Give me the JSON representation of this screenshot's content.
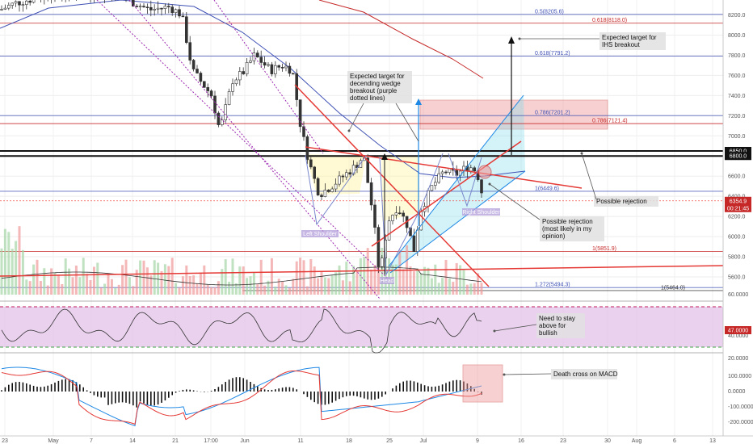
{
  "chart_data": {
    "type": "candlestick",
    "price_axis": {
      "ticks": [
        8200,
        8000,
        7800,
        7600,
        7400,
        7200,
        7000,
        6800,
        6600,
        6400,
        6200,
        6000,
        5800,
        5600
      ],
      "ylim": [
        5450,
        8350
      ]
    },
    "time_axis": {
      "labels": [
        "23",
        "May",
        "7",
        "14",
        "21",
        "17:00",
        "Jun",
        "11",
        "18",
        "25",
        "Jul",
        "9",
        "16",
        "23",
        "30",
        "Aug",
        "6",
        "13"
      ]
    },
    "fib_levels": [
      {
        "label": "0.5(8205.6)",
        "value": 8205.6,
        "color": "#3f51b5"
      },
      {
        "label": "0.618(8118.0)",
        "value": 8118.0,
        "color": "#c62828"
      },
      {
        "label": "0.618(7791.2)",
        "value": 7791.2,
        "color": "#3f51b5"
      },
      {
        "label": "0.786(7201.2)",
        "value": 7201.2,
        "color": "#3f51b5"
      },
      {
        "label": "0.786(7121.4)",
        "value": 7121.4,
        "color": "#c62828"
      },
      {
        "label": "1(6449.6)",
        "value": 6449.6,
        "color": "#3f51b5"
      },
      {
        "label": "1(5851.9)",
        "value": 5851.9,
        "color": "#c62828"
      },
      {
        "label": "1.272(5494.3)",
        "value": 5494.3,
        "color": "#3f51b5"
      },
      {
        "label": "1(5464.0)",
        "value": 5464.0,
        "color": "#333333"
      }
    ],
    "price_badges": [
      {
        "text": "6850.0",
        "value": 6850.0,
        "bg": "#111111"
      },
      {
        "text": "6800.0",
        "value": 6800.0,
        "bg": "#111111"
      },
      {
        "text": "6354.9",
        "value": 6354.9,
        "bg": "#c62828"
      },
      {
        "text": "00:21:45",
        "value": 6300.0,
        "bg": "#c62828"
      }
    ],
    "pattern_labels": [
      {
        "text": "Left Shoulder",
        "price": 6185
      },
      {
        "text": "Head",
        "price": 5570
      },
      {
        "text": "Right Shoulder",
        "price": 6270
      }
    ],
    "annotations": [
      {
        "id": "ihs",
        "text": [
          "Expected target for",
          "IHS breakout"
        ]
      },
      {
        "id": "wedge",
        "text": [
          "Expected target for",
          "decending wedge",
          "breakout (purple",
          "dotted lines)"
        ]
      },
      {
        "id": "rej1",
        "text": [
          "Possible rejection"
        ]
      },
      {
        "id": "rej2",
        "text": [
          "Possible rejection",
          "(most likely in my",
          "opinion)"
        ]
      },
      {
        "id": "rsi",
        "text": [
          "Need to stay",
          "above for",
          "bullish"
        ]
      },
      {
        "id": "macd",
        "text": [
          "Death cross on MACD"
        ]
      }
    ],
    "rsi": {
      "ticks": [
        "60.0000",
        "40.0000",
        "20.0000"
      ],
      "current_badge": "47.0000",
      "upper_band": 70,
      "lower_band": 30
    },
    "macd": {
      "ticks": [
        "100.0000",
        "0.0000",
        "-100.0000",
        "-200.0000"
      ]
    },
    "colors": {
      "up": "#26a69a",
      "down": "#ef5350",
      "candle": "#333333",
      "resistance": "#e53935",
      "wedge": "#9c27b0",
      "channel": "#1e88e5"
    }
  }
}
